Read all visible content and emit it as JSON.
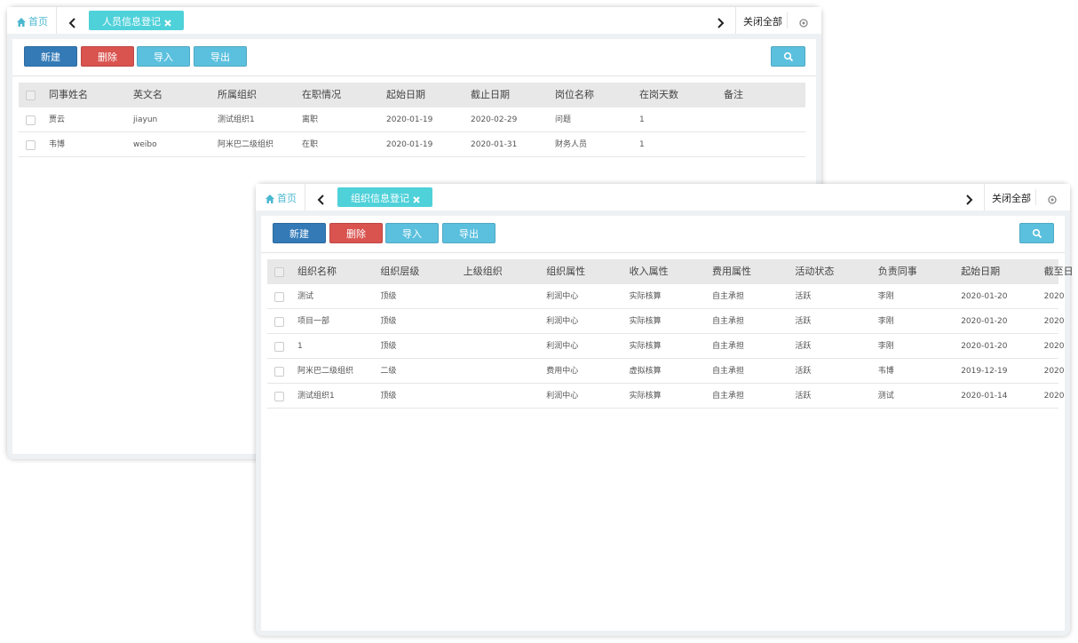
{
  "windows": [
    {
      "home": "首页",
      "tab": "人员信息登记",
      "close_all": "关闭全部",
      "buttons": [
        "新建",
        "删除",
        "导入",
        "导出"
      ],
      "columns": [
        "同事姓名",
        "英文名",
        "所属组织",
        "在职情况",
        "起始日期",
        "截止日期",
        "岗位名称",
        "在岗天数",
        "备注"
      ],
      "rows": [
        [
          "贾云",
          "jiayun",
          "测试组织1",
          "离职",
          "2020-01-19",
          "2020-02-29",
          "问题",
          "1"
        ],
        [
          "韦博",
          "weibo",
          "阿米巴二级组织",
          "在职",
          "2020-01-19",
          "2020-01-31",
          "财务人员",
          "1"
        ]
      ]
    },
    {
      "home": "首页",
      "tab": "组织信息登记",
      "close_all": "关闭全部",
      "buttons": [
        "新建",
        "删除",
        "导入",
        "导出"
      ],
      "columns": [
        "组织名称",
        "组织层级",
        "上级组织",
        "组织属性",
        "收入属性",
        "费用属性",
        "活动状态",
        "负责同事",
        "起始日期",
        "截至日"
      ],
      "rows": [
        [
          "测试",
          "顶级",
          null,
          "利润中心",
          "实际核算",
          "自主承担",
          "活跃",
          "李刚",
          "2020-01-20",
          "2020"
        ],
        [
          "项目一部",
          "顶级",
          null,
          "利润中心",
          "实际核算",
          "自主承担",
          "活跃",
          "李刚",
          "2020-01-20",
          "2020"
        ],
        [
          "1",
          "顶级",
          null,
          "利润中心",
          "实际核算",
          "自主承担",
          "活跃",
          "李刚",
          "2020-01-20",
          "2020"
        ],
        [
          "阿米巴二级组织",
          "二级",
          null,
          "费用中心",
          "虚拟核算",
          "自主承担",
          "活跃",
          "韦博",
          "2019-12-19",
          "2020"
        ],
        [
          "测试组织1",
          "顶级",
          null,
          "利润中心",
          "实际核算",
          "自主承担",
          "活跃",
          "测试",
          "2020-01-14",
          "2020"
        ]
      ]
    }
  ]
}
